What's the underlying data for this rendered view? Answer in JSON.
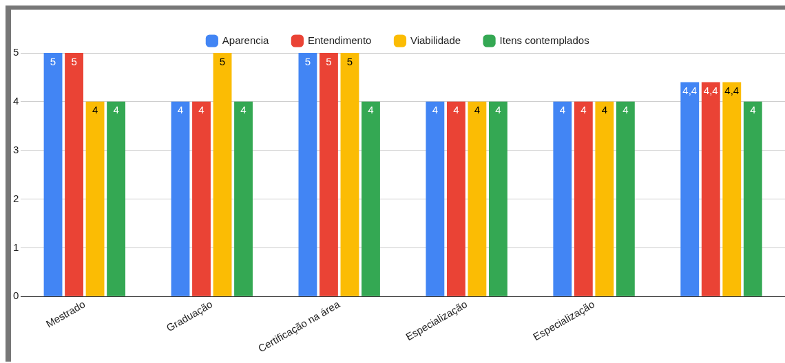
{
  "chart_data": {
    "type": "bar",
    "categories": [
      "Mestrado",
      "Graduação",
      "Certificação na área",
      "Especialização",
      "Especialização",
      null
    ],
    "series": [
      {
        "name": "Aparencia",
        "color": "#4285f4",
        "values": [
          5,
          4,
          5,
          4,
          4,
          4.4
        ],
        "value_labels": [
          "5",
          "4",
          "5",
          "4",
          "4",
          "4,4"
        ]
      },
      {
        "name": "Entendimento",
        "color": "#ea4335",
        "values": [
          5,
          4,
          5,
          4,
          4,
          4.4
        ],
        "value_labels": [
          "5",
          "4",
          "5",
          "4",
          "4",
          "4,4"
        ]
      },
      {
        "name": "Viabilidade",
        "color": "#fbbc04",
        "values": [
          4,
          5,
          5,
          4,
          4,
          4.4
        ],
        "value_labels": [
          "4",
          "5",
          "5",
          "4",
          "4",
          "4,4"
        ]
      },
      {
        "name": "Itens contemplados",
        "color": "#34a853",
        "values": [
          4,
          4,
          4,
          4,
          4,
          4
        ],
        "value_labels": [
          "4",
          "4",
          "4",
          "4",
          "4",
          "4"
        ]
      }
    ],
    "ylim": [
      0,
      5
    ],
    "yticks": [
      0,
      1,
      2,
      3,
      4,
      5
    ],
    "grid": "y",
    "legend": "top"
  }
}
